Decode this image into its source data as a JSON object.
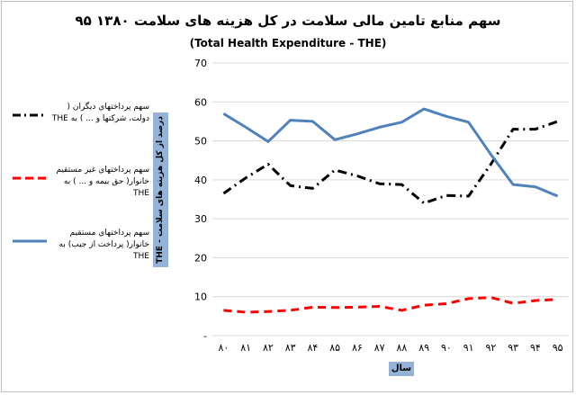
{
  "title": "سهم منابع تامین مالی سلامت در کل هزینه های سلامت ۱۳۸۰ ۹۵",
  "subtitle": "(Total Health Expenditure - THE)",
  "chart_data": {
    "type": "line",
    "title": "سهم منابع تامین مالی سلامت در کل هزینه های سلامت ۱۳۸۰ ۹۵",
    "subtitle": "(Total Health Expenditure - THE)",
    "xlabel": "سال",
    "ylabel": "درصد از کل هزینه های سلامت - THE",
    "categories": [
      "۸۰",
      "۸۱",
      "۸۲",
      "۸۳",
      "۸۴",
      "۸۵",
      "۸۶",
      "۸۷",
      "۸۸",
      "۸۹",
      "۹۰",
      "۹۱",
      "۹۲",
      "۹۳",
      "۹۴",
      "۹۵"
    ],
    "ylim": [
      0,
      70
    ],
    "yticks": [
      "-",
      "10",
      "20",
      "30",
      "40",
      "50",
      "60",
      "70"
    ],
    "grid": true,
    "legend_position": "left",
    "series": [
      {
        "name": "سهم پرداختهاي ديگران ( دولت، شرکتها و ... ) به THE",
        "color": "#000000",
        "dash": "dashdot",
        "values": [
          36.5,
          40.5,
          44,
          38.5,
          37.8,
          42.5,
          41,
          39,
          38.8,
          34,
          36,
          35.8,
          44,
          53,
          53,
          55
        ]
      },
      {
        "name": "سهم پرداختهاي غير مستقيم خانوار( حق بيمه و ... ) به THE",
        "color": "#ff0000",
        "dash": "dash",
        "values": [
          6.5,
          6,
          6.2,
          6.5,
          7.3,
          7.2,
          7.3,
          7.5,
          6.5,
          7.8,
          8.2,
          9.5,
          9.8,
          8.3,
          9,
          9.3
        ]
      },
      {
        "name": "سهم پرداختهاي مستقيم خانوار( پرداخت از جيب) به THE",
        "color": "#4f81bd",
        "dash": "solid",
        "values": [
          57,
          53.5,
          49.8,
          55.3,
          55,
          50.3,
          51.8,
          53.5,
          54.8,
          58.2,
          56.3,
          54.8,
          46.5,
          38.8,
          38.2,
          35.8
        ]
      }
    ]
  }
}
